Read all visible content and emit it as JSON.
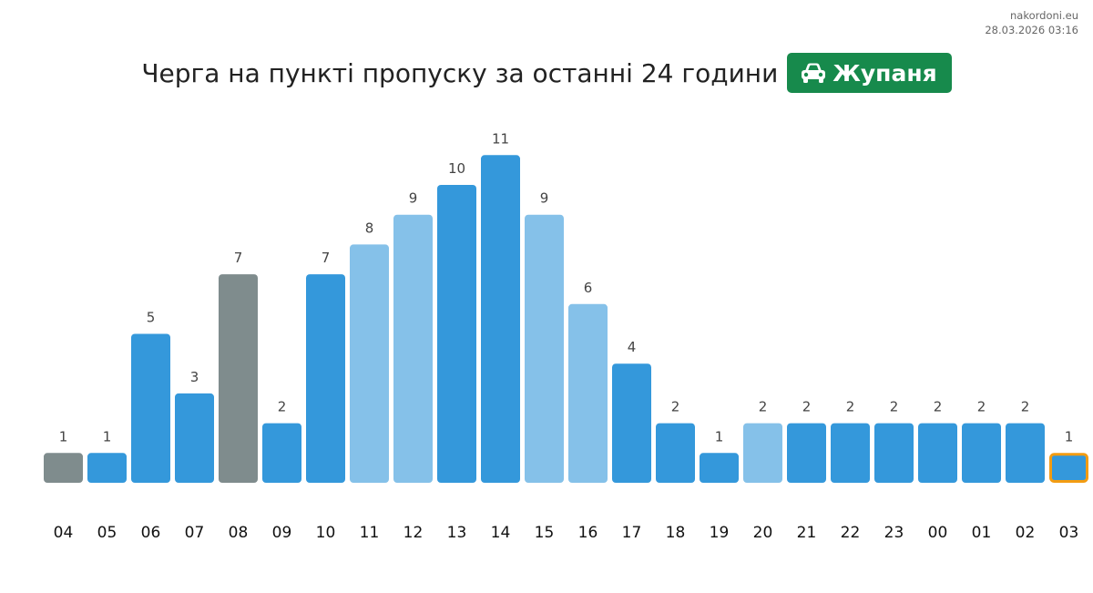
{
  "meta": {
    "site": "nakordoni.eu",
    "timestamp": "28.03.2026 03:16"
  },
  "header": {
    "title": "Черга на пункті пропуску за останні 24 години",
    "badge": {
      "label": "Жупаня",
      "icon": "car-icon",
      "color": "#178a4c"
    }
  },
  "chart_data": {
    "type": "bar",
    "title": "Черга на пункті пропуску за останні 24 години",
    "xlabel": "",
    "ylabel": "",
    "ylim": [
      0,
      11
    ],
    "grid": false,
    "categories": [
      "04",
      "05",
      "06",
      "07",
      "08",
      "09",
      "10",
      "11",
      "12",
      "13",
      "14",
      "15",
      "16",
      "17",
      "18",
      "19",
      "20",
      "21",
      "22",
      "23",
      "00",
      "01",
      "02",
      "03"
    ],
    "values": [
      1,
      1,
      5,
      3,
      7,
      2,
      7,
      8,
      9,
      10,
      11,
      9,
      6,
      4,
      2,
      1,
      2,
      2,
      2,
      2,
      2,
      2,
      2,
      1
    ],
    "bar_styles": [
      "gray",
      "blue",
      "blue",
      "blue",
      "gray",
      "blue",
      "blue",
      "light",
      "light",
      "blue",
      "blue",
      "light",
      "light",
      "blue",
      "blue",
      "blue",
      "light",
      "blue",
      "blue",
      "blue",
      "blue",
      "blue",
      "blue",
      "current"
    ],
    "colors": {
      "blue": "#3498db",
      "light": "#85c1e9",
      "gray": "#7f8c8d",
      "current": "#3498db",
      "current_border": "#f39c12"
    }
  }
}
